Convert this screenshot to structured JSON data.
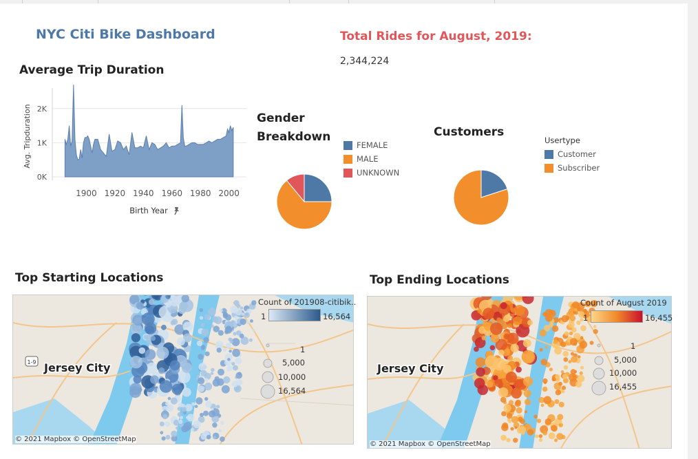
{
  "dashboard": {
    "title": "NYC Citi Bike Dashboard",
    "total_rides_title": "Total Rides for August, 2019:",
    "total_rides_value": "2,344,224"
  },
  "trip_duration": {
    "title": "Average Trip Duration",
    "ylabel": "Avg. Tripduration",
    "xlabel": "Birth Year",
    "pin_icon": "pin-icon",
    "ytick_labels": [
      "2K",
      "1K",
      "0K"
    ],
    "xtick_labels": [
      "1900",
      "1920",
      "1940",
      "1960",
      "1980",
      "2000"
    ]
  },
  "gender": {
    "title_line1": "Gender",
    "title_line2": "Breakdown",
    "legend": [
      "FEMALE",
      "MALE",
      "UNKNOWN"
    ]
  },
  "customers": {
    "title": "Customers",
    "legend_title": "Usertype",
    "legend": [
      "Customer",
      "Subscriber"
    ]
  },
  "start_map": {
    "title": "Top Starting Locations",
    "legend_title": "Count of 201908-citibik..",
    "range_min": "1",
    "range_max": "16,564",
    "size_labels": [
      "1",
      "5,000",
      "10,000",
      "16,564"
    ],
    "place_label": "Jersey City",
    "attribution": "© 2021 Mapbox © OpenStreetMap"
  },
  "end_map": {
    "title": "Top Ending Locations",
    "legend_title": "Count of August 2019",
    "range_min": "1",
    "range_max": "16,455",
    "size_labels": [
      "1",
      "5,000",
      "10,000",
      "16,455"
    ],
    "place_label": "Jersey City",
    "attribution": "© 2021 Mapbox © OpenStreetMap"
  },
  "colors": {
    "blue": "#4e79a7",
    "orange": "#f28e2b",
    "red": "#e15759",
    "area": "#7e9fc6"
  },
  "chart_data": [
    {
      "type": "area",
      "title": "Average Trip Duration",
      "xlabel": "Birth Year",
      "ylabel": "Avg. Tripduration",
      "xlim": [
        1880,
        2005
      ],
      "ylim": [
        0,
        2600
      ],
      "x": [
        1885,
        1886,
        1887,
        1888,
        1889,
        1890,
        1891,
        1892,
        1893,
        1894,
        1895,
        1896,
        1897,
        1898,
        1899,
        1900,
        1901,
        1902,
        1903,
        1904,
        1905,
        1906,
        1908,
        1910,
        1912,
        1914,
        1916,
        1918,
        1920,
        1922,
        1924,
        1926,
        1928,
        1930,
        1932,
        1934,
        1936,
        1938,
        1940,
        1942,
        1944,
        1946,
        1948,
        1950,
        1952,
        1954,
        1956,
        1958,
        1960,
        1962,
        1964,
        1966,
        1967,
        1968,
        1969,
        1970,
        1972,
        1974,
        1976,
        1978,
        1980,
        1982,
        1984,
        1986,
        1988,
        1990,
        1992,
        1994,
        1996,
        1998,
        1999,
        2000,
        2001,
        2002,
        2003
      ],
      "y": [
        1100,
        950,
        1100,
        1500,
        900,
        1050,
        2700,
        1100,
        650,
        500,
        520,
        800,
        550,
        1000,
        1150,
        1150,
        1200,
        1100,
        900,
        700,
        950,
        1100,
        1100,
        800,
        700,
        600,
        1250,
        750,
        800,
        1050,
        1000,
        800,
        900,
        650,
        1300,
        850,
        850,
        900,
        850,
        1200,
        800,
        1000,
        950,
        800,
        850,
        900,
        1000,
        850,
        900,
        900,
        950,
        1000,
        2100,
        1150,
        900,
        900,
        950,
        1000,
        1000,
        950,
        950,
        950,
        1000,
        1050,
        1000,
        1050,
        1100,
        1100,
        1150,
        1200,
        1400,
        1300,
        1500,
        1350,
        1450
      ]
    },
    {
      "type": "pie",
      "title": "Gender Breakdown",
      "labels": [
        "FEMALE",
        "MALE",
        "UNKNOWN"
      ],
      "values": [
        25,
        64,
        11
      ]
    },
    {
      "type": "pie",
      "title": "Customers",
      "labels": [
        "Customer",
        "Subscriber"
      ],
      "values": [
        20,
        80
      ]
    }
  ]
}
